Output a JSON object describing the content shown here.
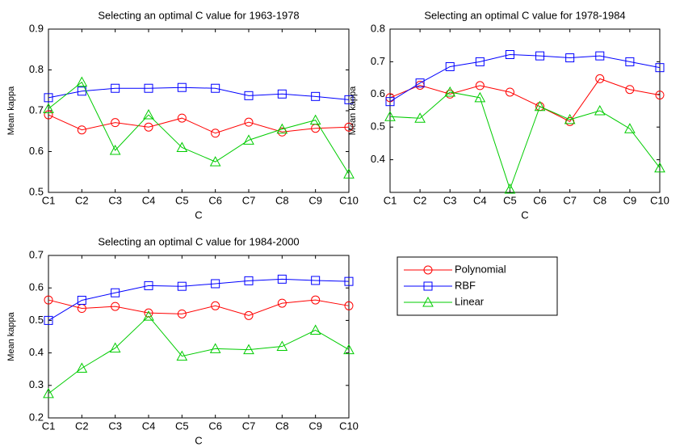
{
  "chart_data": [
    {
      "type": "line",
      "title": "Selecting an optimal C value for 1963-1978",
      "x_label": "C",
      "y_label": "Mean kappa",
      "categories": [
        "C1",
        "C2",
        "C3",
        "C4",
        "C5",
        "C6",
        "C7",
        "C8",
        "C9",
        "C10"
      ],
      "ylim": [
        0.5,
        0.9
      ],
      "yticks": [
        0.5,
        0.6,
        0.7,
        0.8,
        0.9
      ],
      "series": [
        {
          "name": "Polynomial",
          "color": "#ff0000",
          "marker": "circle",
          "values": [
            0.69,
            0.653,
            0.671,
            0.66,
            0.682,
            0.645,
            0.672,
            0.648,
            0.657,
            0.66
          ]
        },
        {
          "name": "RBF",
          "color": "#0000ff",
          "marker": "square",
          "values": [
            0.732,
            0.748,
            0.755,
            0.755,
            0.757,
            0.755,
            0.737,
            0.741,
            0.735,
            0.727
          ]
        },
        {
          "name": "Linear",
          "color": "#00cc00",
          "marker": "triangle",
          "values": [
            0.705,
            0.77,
            0.603,
            0.69,
            0.61,
            0.575,
            0.628,
            0.655,
            0.677,
            0.545
          ]
        }
      ]
    },
    {
      "type": "line",
      "title": "Selecting an optimal C value for 1978-1984",
      "x_label": "C",
      "y_label": "Mean kappa",
      "categories": [
        "C1",
        "C2",
        "C3",
        "C4",
        "C5",
        "C6",
        "C7",
        "C8",
        "C9",
        "C10"
      ],
      "ylim": [
        0.3,
        0.8
      ],
      "yticks": [
        0.4,
        0.5,
        0.6,
        0.7,
        0.8
      ],
      "series": [
        {
          "color": "#ff0000",
          "marker": "circle",
          "values": [
            0.59,
            0.628,
            0.601,
            0.627,
            0.607,
            0.563,
            0.517,
            0.648,
            0.615,
            0.598
          ]
        },
        {
          "color": "#0000ff",
          "marker": "square",
          "values": [
            0.578,
            0.635,
            0.685,
            0.7,
            0.722,
            0.718,
            0.712,
            0.718,
            0.7,
            0.682
          ]
        },
        {
          "color": "#00cc00",
          "marker": "triangle",
          "values": [
            0.532,
            0.527,
            0.607,
            0.59,
            0.31,
            0.563,
            0.523,
            0.55,
            0.495,
            0.375
          ]
        }
      ]
    },
    {
      "type": "line",
      "title": "Selecting an optimal C value for 1984-2000",
      "x_label": "C",
      "y_label": "Mean kappa",
      "categories": [
        "C1",
        "C2",
        "C3",
        "C4",
        "C5",
        "C6",
        "C7",
        "C8",
        "C9",
        "C10"
      ],
      "ylim": [
        0.2,
        0.7
      ],
      "yticks": [
        0.2,
        0.3,
        0.4,
        0.5,
        0.6,
        0.7
      ],
      "series": [
        {
          "color": "#ff0000",
          "marker": "circle",
          "values": [
            0.563,
            0.537,
            0.543,
            0.523,
            0.52,
            0.545,
            0.515,
            0.553,
            0.563,
            0.545
          ]
        },
        {
          "color": "#0000ff",
          "marker": "square",
          "values": [
            0.5,
            0.562,
            0.585,
            0.607,
            0.605,
            0.613,
            0.622,
            0.627,
            0.623,
            0.62
          ]
        },
        {
          "color": "#00cc00",
          "marker": "triangle",
          "values": [
            0.275,
            0.353,
            0.415,
            0.513,
            0.39,
            0.413,
            0.41,
            0.42,
            0.47,
            0.41
          ]
        }
      ]
    }
  ]
}
